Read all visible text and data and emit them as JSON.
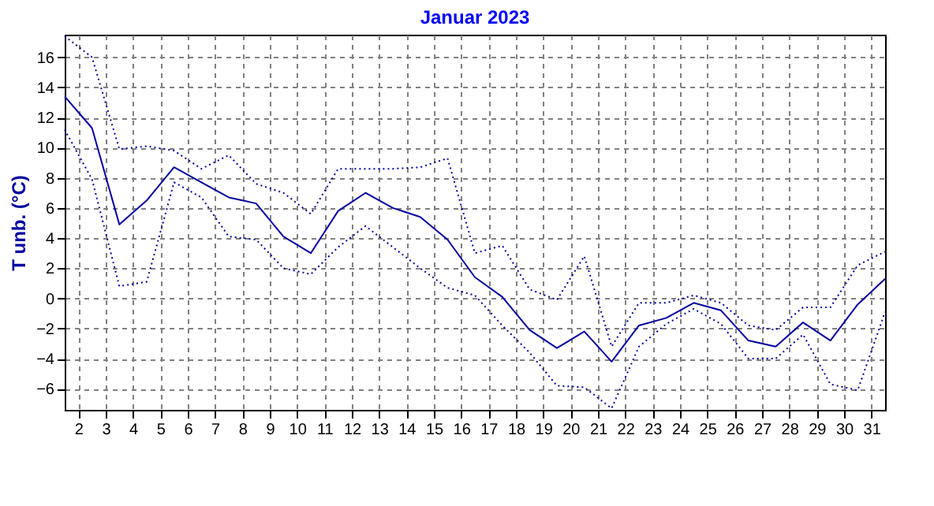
{
  "chart_data": {
    "type": "line",
    "title": "Januar 2023",
    "ylabel": "T unb. (°C)",
    "x": [
      1.5,
      2.5,
      3.5,
      4.5,
      5.5,
      6.5,
      7.5,
      8.5,
      9.5,
      10.5,
      11.5,
      12.5,
      13.5,
      14.5,
      15.5,
      16.5,
      17.5,
      18.5,
      19.5,
      20.5,
      21.5,
      22.5,
      23.5,
      24.5,
      25.5,
      26.5,
      27.5,
      28.5,
      29.5,
      30.5,
      31.5
    ],
    "xlim": [
      1.5,
      31.5
    ],
    "xticks": [
      2,
      3,
      4,
      5,
      6,
      7,
      8,
      9,
      10,
      11,
      12,
      13,
      14,
      15,
      16,
      17,
      18,
      19,
      20,
      21,
      22,
      23,
      24,
      25,
      26,
      27,
      28,
      29,
      30,
      31
    ],
    "ylim": [
      -7.4,
      17.5
    ],
    "yticks": [
      -6,
      -4,
      -2,
      0,
      2,
      4,
      6,
      8,
      10,
      12,
      14,
      16
    ],
    "grid": true,
    "series": [
      {
        "color": "#0000a0",
        "line_style": "solid",
        "values": [
          13.4,
          11.3,
          4.9,
          6.5,
          8.7,
          7.7,
          6.7,
          6.3,
          4.1,
          3.0,
          5.8,
          7.0,
          6.0,
          5.4,
          3.9,
          1.4,
          0.1,
          -2.1,
          -3.3,
          -2.2,
          -4.2,
          -1.8,
          -1.3,
          -0.3,
          -0.8,
          -2.8,
          -3.2,
          -1.6,
          -2.8,
          -0.4,
          1.3
        ]
      },
      {
        "color": "#0000a0",
        "line_style": "dotted",
        "values": [
          17.4,
          16.0,
          9.9,
          10.1,
          9.8,
          8.6,
          9.5,
          7.6,
          7.0,
          5.6,
          8.6,
          8.6,
          8.6,
          8.7,
          9.3,
          3.0,
          3.5,
          0.6,
          -0.1,
          2.8,
          -3.2,
          -0.3,
          -0.3,
          0.2,
          -0.3,
          -1.8,
          -2.1,
          -0.6,
          -0.6,
          2.2,
          3.1
        ]
      },
      {
        "color": "#0000a0",
        "line_style": "dotted",
        "values": [
          11.2,
          7.9,
          0.8,
          1.1,
          7.7,
          6.7,
          4.1,
          3.9,
          2.0,
          1.6,
          3.4,
          4.8,
          3.4,
          2.0,
          0.7,
          0.2,
          -1.8,
          -3.6,
          -5.8,
          -5.9,
          -7.3,
          -3.2,
          -1.7,
          -0.7,
          -1.7,
          -4.0,
          -4.0,
          -2.4,
          -5.7,
          -6.1,
          -0.9
        ]
      }
    ]
  }
}
